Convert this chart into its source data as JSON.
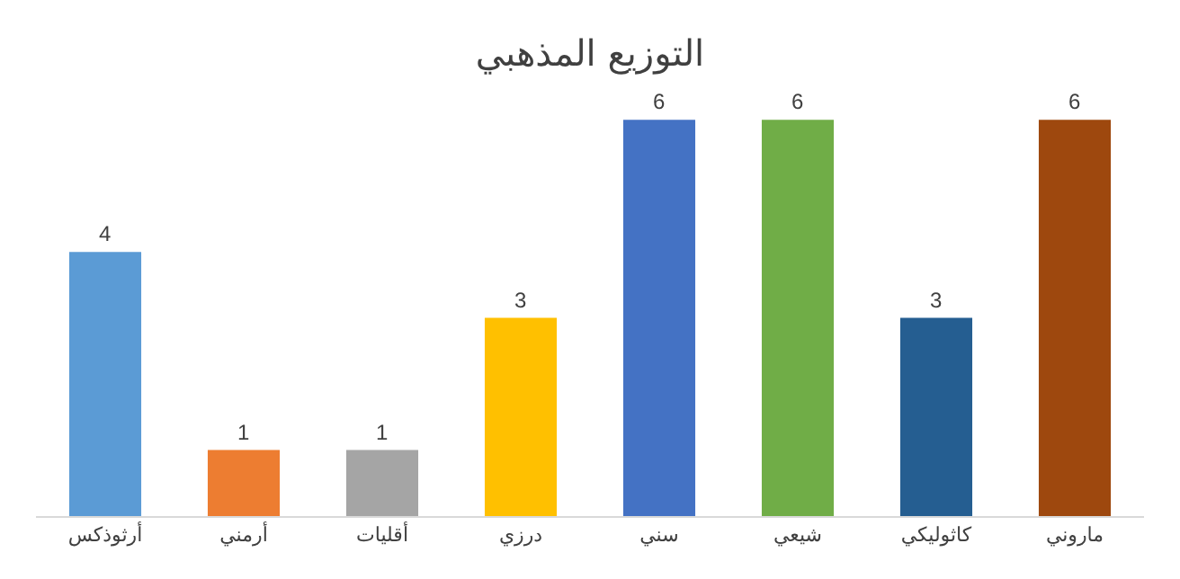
{
  "chart_data": {
    "type": "bar",
    "title": "التوزيع المذهبي",
    "categories": [
      "أرثوذكس",
      "أرمني",
      "أقليات",
      "درزي",
      "سني",
      "شيعي",
      "كاثوليكي",
      "ماروني"
    ],
    "values": [
      4,
      1,
      1,
      3,
      6,
      6,
      3,
      6
    ],
    "colors": [
      "#5b9bd5",
      "#ed7d31",
      "#a5a5a5",
      "#ffc000",
      "#4472c4",
      "#70ad47",
      "#255e91",
      "#9e480e"
    ],
    "data_labels": true
  }
}
